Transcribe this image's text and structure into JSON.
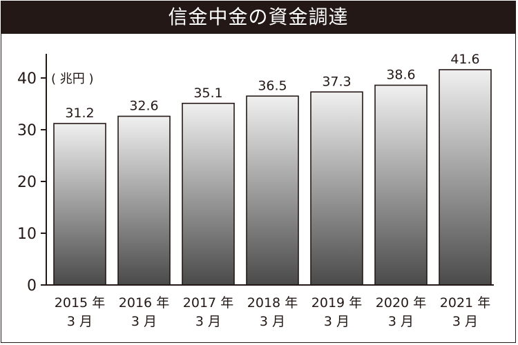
{
  "chart_data": {
    "type": "bar",
    "title": "信金中金の資金調達",
    "unit_label": "( 兆円 )",
    "categories": [
      [
        "2015 年",
        "3 月"
      ],
      [
        "2016 年",
        "3 月"
      ],
      [
        "2017 年",
        "3 月"
      ],
      [
        "2018 年",
        "3 月"
      ],
      [
        "2019 年",
        "3 月"
      ],
      [
        "2020 年",
        "3 月"
      ],
      [
        "2021 年",
        "3 月"
      ]
    ],
    "values": [
      31.2,
      32.6,
      35.1,
      36.5,
      37.3,
      38.6,
      41.6
    ],
    "value_labels": [
      "31.2",
      "32.6",
      "35.1",
      "36.5",
      "37.3",
      "38.6",
      "41.6"
    ],
    "ylim": [
      0,
      40
    ],
    "yticks": [
      0,
      10,
      20,
      30,
      40
    ],
    "xlabel": "",
    "ylabel": "",
    "grid": false,
    "legend": "none",
    "colors": {
      "title_bg": "#231815",
      "title_fg": "#ffffff",
      "bar_top": "#f0f0f0",
      "bar_bottom": "#4a4a4a",
      "axis": "#231815",
      "text": "#231815"
    }
  }
}
